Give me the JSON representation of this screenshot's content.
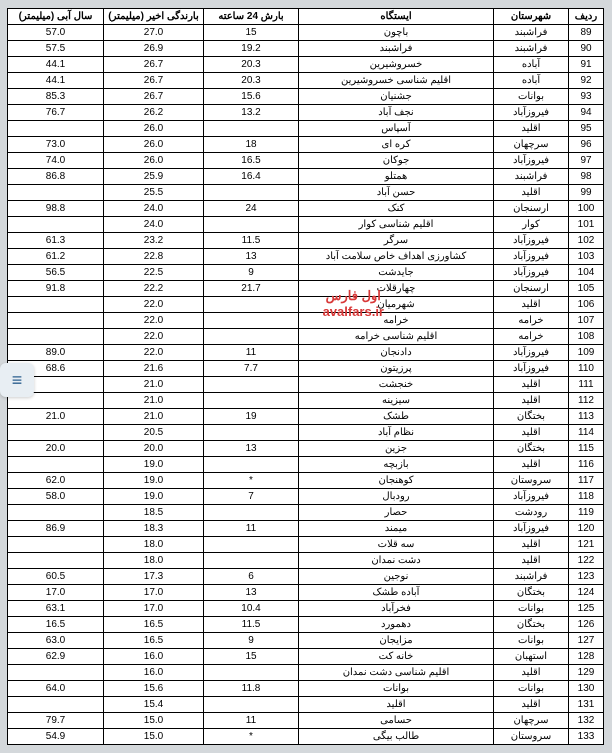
{
  "headers": {
    "row": "ردیف",
    "city": "شهرستان",
    "station": "ایستگاه",
    "rain24": "بارش 24 ساعته",
    "recent": "بارندگی اخیر (میلیمتر)",
    "year": "سال آبی (میلیمتر)"
  },
  "watermark": {
    "line1": "اول فارس",
    "line2": "avalfars.ir",
    "color": "#d83838"
  },
  "side_icon": "≡",
  "table_style": {
    "border_color": "#000000",
    "bg": "#ffffff",
    "font_size": 10
  },
  "rows": [
    {
      "n": "89",
      "city": "فراشبند",
      "station": "باچون",
      "r24": "15",
      "recent": "27.0",
      "year": "57.0"
    },
    {
      "n": "90",
      "city": "فراشبند",
      "station": "فراشبند",
      "r24": "19.2",
      "recent": "26.9",
      "year": "57.5"
    },
    {
      "n": "91",
      "city": "آباده",
      "station": "خسروشیرین",
      "r24": "20.3",
      "recent": "26.7",
      "year": "44.1"
    },
    {
      "n": "92",
      "city": "آباده",
      "station": "اقلیم شناسی خسروشیرین",
      "r24": "20.3",
      "recent": "26.7",
      "year": "44.1"
    },
    {
      "n": "93",
      "city": "بوانات",
      "station": "جشنیان",
      "r24": "15.6",
      "recent": "26.7",
      "year": "85.3"
    },
    {
      "n": "94",
      "city": "فیروزآباد",
      "station": "نجف آباد",
      "r24": "13.2",
      "recent": "26.2",
      "year": "76.7"
    },
    {
      "n": "95",
      "city": "اقلید",
      "station": "آسپاس",
      "r24": "",
      "recent": "26.0",
      "year": ""
    },
    {
      "n": "96",
      "city": "سرچهان",
      "station": "کره ای",
      "r24": "18",
      "recent": "26.0",
      "year": "73.0"
    },
    {
      "n": "97",
      "city": "فیروزآباد",
      "station": "جوکان",
      "r24": "16.5",
      "recent": "26.0",
      "year": "74.0"
    },
    {
      "n": "98",
      "city": "فراشبند",
      "station": "همتلو",
      "r24": "16.4",
      "recent": "25.9",
      "year": "86.8"
    },
    {
      "n": "99",
      "city": "اقلید",
      "station": "حسن آباد",
      "r24": "",
      "recent": "25.5",
      "year": ""
    },
    {
      "n": "100",
      "city": "ارسنجان",
      "station": "کنک",
      "r24": "24",
      "recent": "24.0",
      "year": "98.8"
    },
    {
      "n": "101",
      "city": "کوار",
      "station": "اقلیم شناسی کوار",
      "r24": "",
      "recent": "24.0",
      "year": ""
    },
    {
      "n": "102",
      "city": "فیروزآباد",
      "station": "سرگر",
      "r24": "11.5",
      "recent": "23.2",
      "year": "61.3"
    },
    {
      "n": "103",
      "city": "فیروزآباد",
      "station": "کشاورزی اهداف خاص سلامت آباد",
      "r24": "13",
      "recent": "22.8",
      "year": "61.2"
    },
    {
      "n": "104",
      "city": "فیروزآباد",
      "station": "جایدشت",
      "r24": "9",
      "recent": "22.5",
      "year": "56.5"
    },
    {
      "n": "105",
      "city": "ارسنجان",
      "station": "چهارقلات",
      "r24": "21.7",
      "recent": "22.2",
      "year": "91.8"
    },
    {
      "n": "106",
      "city": "اقلید",
      "station": "شهرمیان",
      "r24": "",
      "recent": "22.0",
      "year": ""
    },
    {
      "n": "107",
      "city": "خرامه",
      "station": "خرامه",
      "r24": "",
      "recent": "22.0",
      "year": ""
    },
    {
      "n": "108",
      "city": "خرامه",
      "station": "اقلیم شناسی خرامه",
      "r24": "",
      "recent": "22.0",
      "year": ""
    },
    {
      "n": "109",
      "city": "فیروزآباد",
      "station": "دادنجان",
      "r24": "11",
      "recent": "22.0",
      "year": "89.0"
    },
    {
      "n": "110",
      "city": "فیروزآباد",
      "station": "پرزیتون",
      "r24": "7.7",
      "recent": "21.6",
      "year": "68.6"
    },
    {
      "n": "111",
      "city": "اقلید",
      "station": "خنجشت",
      "r24": "",
      "recent": "21.0",
      "year": ""
    },
    {
      "n": "112",
      "city": "اقلید",
      "station": "سیزینه",
      "r24": "",
      "recent": "21.0",
      "year": ""
    },
    {
      "n": "113",
      "city": "بختگان",
      "station": "طشک",
      "r24": "19",
      "recent": "21.0",
      "year": "21.0"
    },
    {
      "n": "114",
      "city": "اقلید",
      "station": "نظام آباد",
      "r24": "",
      "recent": "20.5",
      "year": ""
    },
    {
      "n": "115",
      "city": "بختگان",
      "station": "جزین",
      "r24": "13",
      "recent": "20.0",
      "year": "20.0"
    },
    {
      "n": "116",
      "city": "اقلید",
      "station": "بازبچه",
      "r24": "",
      "recent": "19.0",
      "year": ""
    },
    {
      "n": "117",
      "city": "سروستان",
      "station": "کوهنجان",
      "r24": "*",
      "recent": "19.0",
      "year": "62.0"
    },
    {
      "n": "118",
      "city": "فیروزآباد",
      "station": "رودبال",
      "r24": "7",
      "recent": "19.0",
      "year": "58.0"
    },
    {
      "n": "119",
      "city": "رودشت",
      "station": "حصار",
      "r24": "",
      "recent": "18.5",
      "year": ""
    },
    {
      "n": "120",
      "city": "فیروزآباد",
      "station": "میمند",
      "r24": "11",
      "recent": "18.3",
      "year": "86.9"
    },
    {
      "n": "121",
      "city": "اقلید",
      "station": "سه قلات",
      "r24": "",
      "recent": "18.0",
      "year": ""
    },
    {
      "n": "122",
      "city": "اقلید",
      "station": "دشت نمدان",
      "r24": "",
      "recent": "18.0",
      "year": ""
    },
    {
      "n": "123",
      "city": "فراشبند",
      "station": "نوجین",
      "r24": "6",
      "recent": "17.3",
      "year": "60.5"
    },
    {
      "n": "124",
      "city": "بختگان",
      "station": "آباده طشک",
      "r24": "13",
      "recent": "17.0",
      "year": "17.0"
    },
    {
      "n": "125",
      "city": "بوانات",
      "station": "فخرآباد",
      "r24": "10.4",
      "recent": "17.0",
      "year": "63.1"
    },
    {
      "n": "126",
      "city": "بختگان",
      "station": "دهمورد",
      "r24": "11.5",
      "recent": "16.5",
      "year": "16.5"
    },
    {
      "n": "127",
      "city": "بوانات",
      "station": "مزایجان",
      "r24": "9",
      "recent": "16.5",
      "year": "63.0"
    },
    {
      "n": "128",
      "city": "استهبان",
      "station": "خانه کت",
      "r24": "15",
      "recent": "16.0",
      "year": "62.9"
    },
    {
      "n": "129",
      "city": "اقلید",
      "station": "اقلیم شناسی دشت نمدان",
      "r24": "",
      "recent": "16.0",
      "year": ""
    },
    {
      "n": "130",
      "city": "بوانات",
      "station": "بوانات",
      "r24": "11.8",
      "recent": "15.6",
      "year": "64.0"
    },
    {
      "n": "131",
      "city": "اقلید",
      "station": "اقلید",
      "r24": "",
      "recent": "15.4",
      "year": ""
    },
    {
      "n": "132",
      "city": "سرچهان",
      "station": "حسامی",
      "r24": "11",
      "recent": "15.0",
      "year": "79.7"
    },
    {
      "n": "133",
      "city": "سروستان",
      "station": "طالب بیگی",
      "r24": "*",
      "recent": "15.0",
      "year": "54.9"
    }
  ]
}
